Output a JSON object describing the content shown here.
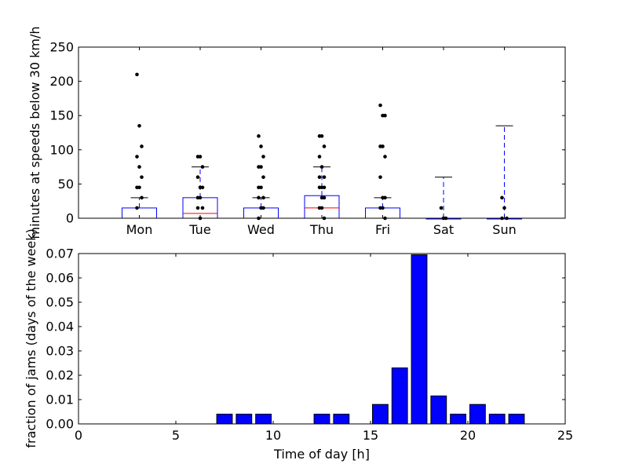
{
  "chart_data": [
    {
      "type": "box",
      "ylabel": "minutes at speeds below 30 km/h",
      "xlabel": "",
      "ylim": [
        0,
        250
      ],
      "yticks": [
        0,
        50,
        100,
        150,
        200,
        250
      ],
      "grid": false,
      "categories": [
        "Mon",
        "Tue",
        "Wed",
        "Thu",
        "Fri",
        "Sat",
        "Sun"
      ],
      "boxes": [
        {
          "category": "Mon",
          "q1": 0,
          "median": 0,
          "q3": 15,
          "whisker_low": 0,
          "whisker_high": 30,
          "outliers": [
            210,
            135,
            105,
            90,
            75,
            60,
            45,
            45,
            30,
            15
          ]
        },
        {
          "category": "Tue",
          "q1": 0,
          "median": 7,
          "q3": 30,
          "whisker_low": 0,
          "whisker_high": 75,
          "outliers": [
            90,
            90,
            75,
            60,
            45,
            45,
            30,
            30,
            15,
            15,
            0
          ]
        },
        {
          "category": "Wed",
          "q1": 0,
          "median": 0,
          "q3": 15,
          "whisker_low": 0,
          "whisker_high": 30,
          "outliers": [
            120,
            105,
            90,
            75,
            75,
            60,
            45,
            45,
            30,
            30,
            15,
            15,
            0
          ]
        },
        {
          "category": "Thu",
          "q1": 0,
          "median": 15,
          "q3": 33,
          "whisker_low": 0,
          "whisker_high": 75,
          "outliers": [
            120,
            120,
            105,
            90,
            75,
            60,
            60,
            45,
            45,
            45,
            30,
            30,
            15,
            15,
            0
          ]
        },
        {
          "category": "Fri",
          "q1": 0,
          "median": 0,
          "q3": 15,
          "whisker_low": 0,
          "whisker_high": 30,
          "outliers": [
            165,
            150,
            150,
            105,
            105,
            90,
            60,
            30,
            30,
            15,
            15,
            0
          ]
        },
        {
          "category": "Sat",
          "q1": 0,
          "median": 0,
          "q3": 0,
          "whisker_low": 0,
          "whisker_high": 60,
          "outliers": [
            15,
            0,
            0
          ]
        },
        {
          "category": "Sun",
          "q1": 0,
          "median": 0,
          "q3": 0,
          "whisker_low": 0,
          "whisker_high": 135,
          "outliers": [
            30,
            15,
            0,
            0
          ]
        }
      ]
    },
    {
      "type": "bar",
      "title": "",
      "xlabel": "Time of day [h]",
      "ylabel": "fraction of jams (days of the week)",
      "xlim": [
        0,
        25
      ],
      "ylim": [
        0,
        0.07
      ],
      "xticks": [
        0,
        5,
        10,
        15,
        20,
        25
      ],
      "yticks": [
        "0.00",
        "0.01",
        "0.02",
        "0.03",
        "0.04",
        "0.05",
        "0.06",
        "0.07"
      ],
      "grid": false,
      "x": [
        0,
        1,
        2,
        3,
        4,
        5,
        6,
        7,
        8,
        9,
        10,
        11,
        12,
        13,
        14,
        15,
        16,
        17,
        18,
        19,
        20,
        21,
        22,
        23
      ],
      "values": [
        0,
        0,
        0,
        0,
        0,
        0,
        0,
        0.004,
        0.004,
        0.004,
        0,
        0,
        0.004,
        0.004,
        0,
        0.008,
        0.023,
        0.0695,
        0.0115,
        0.004,
        0.008,
        0.004,
        0.004,
        0
      ]
    }
  ],
  "colors": {
    "box": "#0000ff",
    "median": "#ff0000",
    "whisker": "#0000ff",
    "cap": "#000000",
    "flier": "#000000",
    "bar_fill": "#0000ff",
    "bar_edge": "#000000"
  }
}
